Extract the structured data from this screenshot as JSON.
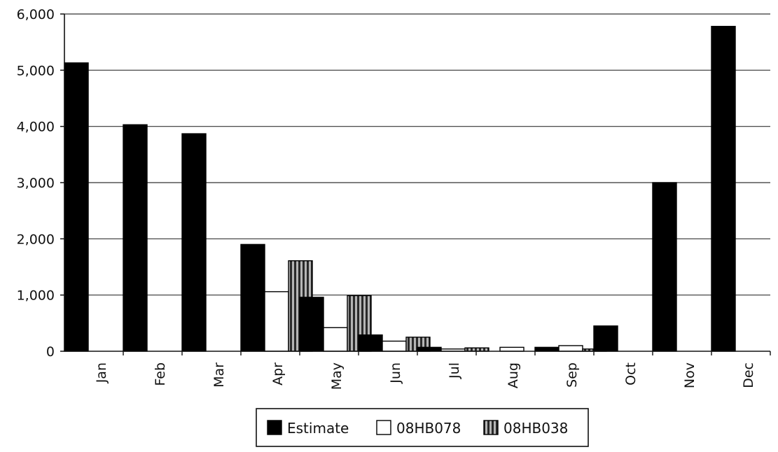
{
  "chart_data": {
    "type": "bar",
    "categories": [
      "Jan",
      "Feb",
      "Mar",
      "Apr",
      "May",
      "Jun",
      "Jul",
      "Aug",
      "Sep",
      "Oct",
      "Nov",
      "Dec"
    ],
    "series": [
      {
        "name": "Estimate",
        "values": [
          5130,
          4030,
          3870,
          1900,
          960,
          290,
          70,
          0,
          70,
          450,
          3000,
          5780
        ],
        "color": "#000000",
        "pattern": "solid"
      },
      {
        "name": "08HB078",
        "values": [
          0,
          0,
          0,
          1060,
          420,
          180,
          40,
          70,
          100,
          0,
          0,
          0
        ],
        "color": "#ffffff",
        "pattern": "outline"
      },
      {
        "name": "08HB038",
        "values": [
          0,
          0,
          0,
          1610,
          990,
          250,
          60,
          0,
          40,
          0,
          0,
          0
        ],
        "color": "#555555",
        "pattern": "vertical-stripes"
      }
    ],
    "yticks": [
      "0",
      "1,000",
      "2,000",
      "3,000",
      "4,000",
      "5,000",
      "6,000"
    ],
    "ytick_values": [
      0,
      1000,
      2000,
      3000,
      4000,
      5000,
      6000
    ],
    "ylim": [
      0,
      6000
    ],
    "title": "",
    "xlabel": "",
    "ylabel": "",
    "grid": "horizontal",
    "legend_position": "bottom-center"
  }
}
